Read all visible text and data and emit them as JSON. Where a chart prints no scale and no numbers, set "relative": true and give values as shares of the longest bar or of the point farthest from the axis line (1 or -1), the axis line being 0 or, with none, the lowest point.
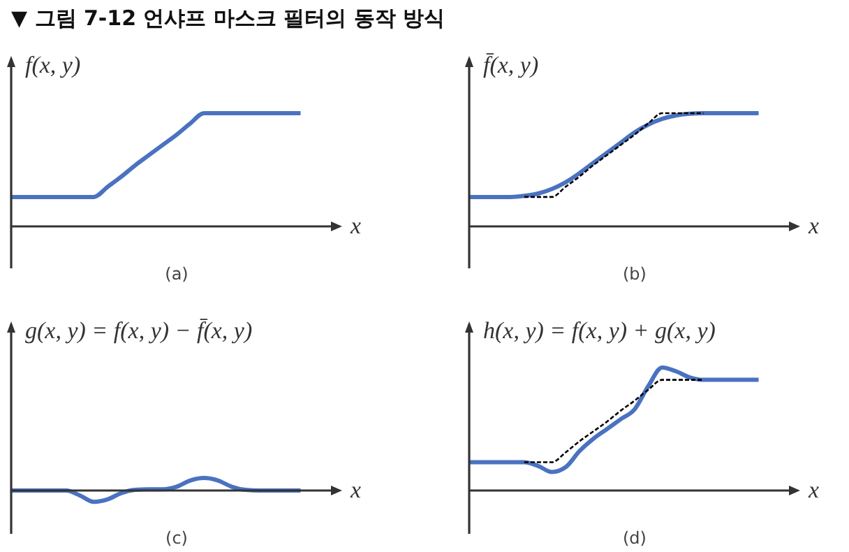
{
  "chart_data": [
    {
      "type": "line",
      "title": "▼ 그림 7-12 언샤프 마스크 필터의 동작 방식",
      "relative": true,
      "xlabel": "x",
      "ylabel": "f(x, y)",
      "annotations": [
        "(a)"
      ],
      "marker": "none",
      "categories": [
        null,
        null,
        null,
        null,
        null,
        null,
        null,
        null,
        null,
        null,
        null,
        null,
        null,
        null,
        null,
        null,
        null,
        null,
        null,
        null,
        null,
        null,
        null,
        null
      ],
      "series": [
        {
          "color": "#4a72c0",
          "line_style": "solid",
          "values": [
            0.26,
            0.26,
            0.26,
            0.26,
            0.26,
            0.26,
            0.26,
            0.35,
            0.44,
            0.54,
            0.63,
            0.72,
            0.81,
            0.91,
            1,
            1,
            1,
            1,
            1,
            1,
            1,
            1,
            null,
            null
          ]
        }
      ]
    },
    {
      "type": "line",
      "relative": true,
      "xlabel": "x",
      "ylabel": "f̄(x, y)",
      "annotations": [
        "(b)"
      ],
      "marker": "none",
      "categories": [
        null,
        null,
        null,
        null,
        null,
        null,
        null,
        null,
        null,
        null,
        null,
        null,
        null,
        null,
        null,
        null,
        null,
        null,
        null,
        null,
        null,
        null,
        null,
        null
      ],
      "series": [
        {
          "color": "#4a72c0",
          "line_style": "solid",
          "values": [
            0.26,
            0.26,
            0.26,
            0.26,
            0.27,
            0.29,
            0.33,
            0.39,
            0.47,
            0.56,
            0.65,
            0.74,
            0.83,
            0.9,
            0.95,
            0.98,
            0.995,
            1,
            1,
            1,
            1,
            1,
            null,
            null
          ]
        },
        {
          "color": "#000000",
          "line_style": "dashed",
          "values": [
            null,
            null,
            null,
            null,
            0.26,
            0.26,
            0.26,
            0.35,
            0.44,
            0.54,
            0.63,
            0.72,
            0.81,
            0.91,
            1,
            1,
            1,
            1,
            null,
            null,
            null,
            null,
            null,
            null
          ]
        }
      ]
    },
    {
      "type": "line",
      "relative": true,
      "xlabel": "x",
      "ylabel": "g(x, y) = f(x, y) − f̄(x, y)",
      "annotations": [
        "(c)"
      ],
      "marker": "none",
      "categories": [
        null,
        null,
        null,
        null,
        null,
        null,
        null,
        null,
        null,
        null,
        null,
        null,
        null,
        null,
        null,
        null,
        null,
        null,
        null,
        null,
        null,
        null,
        null,
        null
      ],
      "series": [
        {
          "color": "#4a72c0",
          "line_style": "solid",
          "values": [
            0,
            0,
            0,
            0,
            0,
            -0.4,
            -0.9,
            -0.7,
            -0.2,
            0.05,
            0.1,
            0.1,
            0.3,
            0.8,
            1,
            0.8,
            0.3,
            0.05,
            0,
            0,
            0,
            0,
            null,
            null
          ]
        }
      ]
    },
    {
      "type": "line",
      "relative": true,
      "xlabel": "x",
      "ylabel": "h(x, y) = f(x, y) + g(x, y)",
      "annotations": [
        "(d)"
      ],
      "marker": "none",
      "categories": [
        null,
        null,
        null,
        null,
        null,
        null,
        null,
        null,
        null,
        null,
        null,
        null,
        null,
        null,
        null,
        null,
        null,
        null,
        null,
        null,
        null,
        null,
        null,
        null
      ],
      "series": [
        {
          "color": "#4a72c0",
          "line_style": "solid",
          "values": [
            0.23,
            0.23,
            0.23,
            0.23,
            0.23,
            0.2,
            0.15,
            0.19,
            0.32,
            0.42,
            0.5,
            0.58,
            0.66,
            0.85,
            1,
            0.97,
            0.92,
            0.9,
            0.9,
            0.9,
            0.9,
            0.9,
            null,
            null
          ]
        },
        {
          "color": "#000000",
          "line_style": "dashed",
          "values": [
            null,
            null,
            null,
            null,
            0.23,
            0.23,
            0.23,
            0.31,
            0.4,
            0.48,
            0.56,
            0.65,
            0.73,
            0.82,
            0.9,
            0.9,
            0.9,
            0.9,
            null,
            null,
            null,
            null,
            null,
            null
          ]
        }
      ]
    }
  ]
}
